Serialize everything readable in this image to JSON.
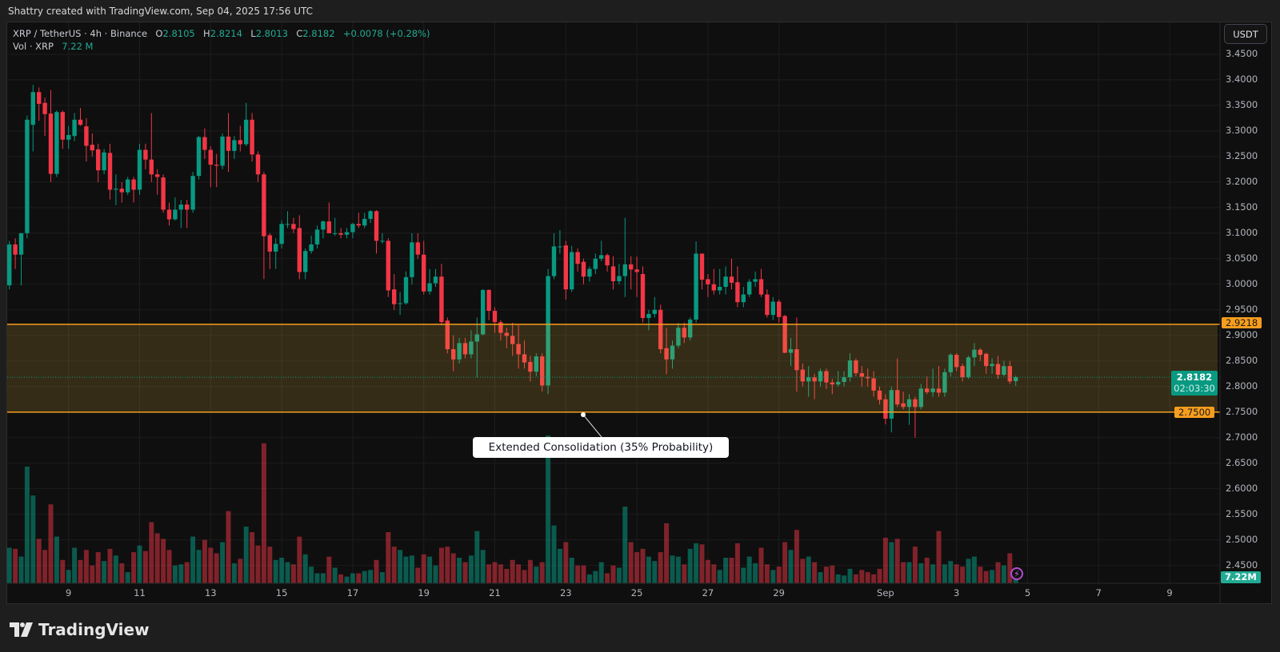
{
  "header": {
    "attribution": "Shattry created with TradingView.com, Sep 04, 2025 17:56 UTC"
  },
  "legend": {
    "symbol": "XRP / TetherUS · 4h · Binance",
    "o_label": "O",
    "o": "2.8105",
    "h_label": "H",
    "h": "2.8214",
    "l_label": "L",
    "l": "2.8013",
    "c_label": "C",
    "c": "2.8182",
    "change": "+0.0078 (+0.28%)",
    "vol_label": "Vol · XRP",
    "vol": "7.22 M"
  },
  "price_axis": {
    "currency": "USDT"
  },
  "branding": {
    "logo": "TradingView"
  },
  "chart_data": {
    "type": "bar",
    "style": "candlestick",
    "title": "XRP / TetherUS · 4h · Binance",
    "ylim": [
      2.415,
      3.514
    ],
    "y_ticks": [
      "3.4500",
      "3.4000",
      "3.3500",
      "3.3000",
      "3.2500",
      "3.2000",
      "3.1500",
      "3.1000",
      "3.0500",
      "3.0000",
      "2.9500",
      "2.9000",
      "2.8500",
      "2.8000",
      "2.7500",
      "2.7000",
      "2.6500",
      "2.6000",
      "2.5500",
      "2.5000",
      "2.4500"
    ],
    "x_ticks": [
      "9",
      "11",
      "13",
      "15",
      "17",
      "19",
      "21",
      "23",
      "25",
      "27",
      "29",
      "Sep",
      "3",
      "5",
      "7",
      "9"
    ],
    "grid": true,
    "colors": {
      "up": "#089981",
      "down": "#f23645",
      "zone_line": "#f79d1e",
      "last_price": "#089981",
      "alert": "#b04fd0"
    },
    "zone": {
      "top": 2.9218,
      "bottom": 2.75,
      "top_label": "2.9218",
      "bottom_label": "2.7500"
    },
    "annotation": "Extended Consolidation (35% Probability)",
    "last_price": {
      "value": 2.8182,
      "label": "2.8182",
      "countdown": "02:03:30"
    },
    "volume_label": "7.22M",
    "ohlc": [
      [
        2.998,
        3.085,
        2.99,
        3.078
      ],
      [
        3.078,
        3.09,
        3.03,
        3.058
      ],
      [
        3.058,
        3.1,
        2.998,
        3.1
      ],
      [
        3.1,
        3.33,
        3.09,
        3.322
      ],
      [
        3.312,
        3.39,
        3.26,
        3.376
      ],
      [
        3.376,
        3.385,
        3.32,
        3.353
      ],
      [
        3.355,
        3.365,
        3.29,
        3.333
      ],
      [
        3.334,
        3.38,
        3.2,
        3.216
      ],
      [
        3.216,
        3.34,
        3.21,
        3.337
      ],
      [
        3.337,
        3.34,
        3.265,
        3.283
      ],
      [
        3.283,
        3.31,
        3.265,
        3.292
      ],
      [
        3.29,
        3.335,
        3.28,
        3.322
      ],
      [
        3.322,
        3.345,
        3.31,
        3.312
      ],
      [
        3.309,
        3.325,
        3.24,
        3.271
      ],
      [
        3.273,
        3.295,
        3.25,
        3.262
      ],
      [
        3.264,
        3.275,
        3.2,
        3.223
      ],
      [
        3.223,
        3.265,
        3.215,
        3.258
      ],
      [
        3.257,
        3.275,
        3.166,
        3.185
      ],
      [
        3.185,
        3.215,
        3.155,
        3.187
      ],
      [
        3.187,
        3.2,
        3.16,
        3.18
      ],
      [
        3.18,
        3.21,
        3.175,
        3.205
      ],
      [
        3.205,
        3.21,
        3.16,
        3.185
      ],
      [
        3.185,
        3.275,
        3.175,
        3.263
      ],
      [
        3.263,
        3.275,
        3.225,
        3.244
      ],
      [
        3.244,
        3.335,
        3.2,
        3.215
      ],
      [
        3.215,
        3.225,
        3.175,
        3.21
      ],
      [
        3.209,
        3.215,
        3.14,
        3.146
      ],
      [
        3.146,
        3.16,
        3.115,
        3.127
      ],
      [
        3.127,
        3.17,
        3.125,
        3.146
      ],
      [
        3.146,
        3.165,
        3.11,
        3.156
      ],
      [
        3.156,
        3.165,
        3.11,
        3.146
      ],
      [
        3.146,
        3.22,
        3.14,
        3.212
      ],
      [
        3.212,
        3.29,
        3.205,
        3.288
      ],
      [
        3.288,
        3.305,
        3.245,
        3.263
      ],
      [
        3.263,
        3.27,
        3.19,
        3.234
      ],
      [
        3.234,
        3.255,
        3.19,
        3.232
      ],
      [
        3.232,
        3.295,
        3.225,
        3.289
      ],
      [
        3.289,
        3.335,
        3.22,
        3.261
      ],
      [
        3.261,
        3.29,
        3.245,
        3.282
      ],
      [
        3.282,
        3.31,
        3.26,
        3.274
      ],
      [
        3.274,
        3.355,
        3.27,
        3.322
      ],
      [
        3.322,
        3.335,
        3.24,
        3.254
      ],
      [
        3.254,
        3.26,
        3.2,
        3.215
      ],
      [
        3.215,
        3.22,
        3.01,
        3.094
      ],
      [
        3.096,
        3.1,
        3.03,
        3.064
      ],
      [
        3.064,
        3.09,
        3.03,
        3.079
      ],
      [
        3.079,
        3.125,
        3.07,
        3.118
      ],
      [
        3.118,
        3.143,
        3.11,
        3.118
      ],
      [
        3.118,
        3.13,
        3.1,
        3.108
      ],
      [
        3.11,
        3.135,
        3.01,
        3.024
      ],
      [
        3.024,
        3.07,
        3.01,
        3.065
      ],
      [
        3.065,
        3.095,
        3.06,
        3.078
      ],
      [
        3.078,
        3.115,
        3.07,
        3.107
      ],
      [
        3.107,
        3.125,
        3.09,
        3.123
      ],
      [
        3.123,
        3.16,
        3.1,
        3.1
      ],
      [
        3.1,
        3.13,
        3.095,
        3.1
      ],
      [
        3.1,
        3.11,
        3.09,
        3.097
      ],
      [
        3.097,
        3.11,
        3.09,
        3.102
      ],
      [
        3.102,
        3.12,
        3.09,
        3.118
      ],
      [
        3.118,
        3.14,
        3.11,
        3.115
      ],
      [
        3.115,
        3.14,
        3.11,
        3.128
      ],
      [
        3.128,
        3.145,
        3.12,
        3.143
      ],
      [
        3.143,
        3.145,
        3.06,
        3.085
      ],
      [
        3.085,
        3.1,
        3.08,
        3.085
      ],
      [
        3.085,
        3.09,
        2.975,
        2.988
      ],
      [
        2.99,
        3.02,
        2.95,
        2.961
      ],
      [
        2.962,
        2.985,
        2.94,
        2.963
      ],
      [
        2.963,
        3.025,
        2.96,
        3.014
      ],
      [
        3.014,
        3.1,
        3.0,
        3.082
      ],
      [
        3.082,
        3.1,
        3.05,
        3.058
      ],
      [
        3.058,
        3.085,
        2.98,
        2.986
      ],
      [
        2.986,
        3.03,
        2.98,
        3.002
      ],
      [
        3.002,
        3.03,
        2.995,
        3.015
      ],
      [
        3.015,
        3.04,
        2.92,
        2.926
      ],
      [
        2.929,
        2.935,
        2.865,
        2.873
      ],
      [
        2.873,
        2.9,
        2.83,
        2.853
      ],
      [
        2.853,
        2.895,
        2.845,
        2.885
      ],
      [
        2.885,
        2.895,
        2.855,
        2.863
      ],
      [
        2.863,
        2.91,
        2.855,
        2.888
      ],
      [
        2.888,
        2.935,
        2.818,
        2.902
      ],
      [
        2.902,
        2.99,
        2.9,
        2.989
      ],
      [
        2.989,
        2.99,
        2.93,
        2.948
      ],
      [
        2.948,
        2.955,
        2.905,
        2.926
      ],
      [
        2.926,
        2.93,
        2.89,
        2.905
      ],
      [
        2.905,
        2.915,
        2.875,
        2.899
      ],
      [
        2.899,
        2.925,
        2.86,
        2.883
      ],
      [
        2.883,
        2.92,
        2.835,
        2.863
      ],
      [
        2.863,
        2.89,
        2.835,
        2.847
      ],
      [
        2.848,
        2.86,
        2.81,
        2.829
      ],
      [
        2.829,
        2.865,
        2.82,
        2.859
      ],
      [
        2.859,
        2.865,
        2.79,
        2.802
      ],
      [
        2.802,
        3.03,
        2.785,
        3.016
      ],
      [
        3.016,
        3.1,
        3.01,
        3.074
      ],
      [
        3.074,
        3.106,
        3.06,
        3.074
      ],
      [
        3.076,
        3.085,
        2.97,
        2.99
      ],
      [
        2.99,
        3.075,
        2.985,
        3.063
      ],
      [
        3.063,
        3.07,
        3.025,
        3.04
      ],
      [
        3.044,
        3.05,
        3.0,
        3.015
      ],
      [
        3.015,
        3.035,
        3.005,
        3.03
      ],
      [
        3.03,
        3.06,
        3.02,
        3.05
      ],
      [
        3.05,
        3.085,
        3.045,
        3.057
      ],
      [
        3.057,
        3.06,
        3.025,
        3.037
      ],
      [
        3.035,
        3.055,
        2.99,
        3.006
      ],
      [
        3.006,
        3.04,
        3.0,
        3.016
      ],
      [
        3.016,
        3.13,
        2.975,
        3.039
      ],
      [
        3.039,
        3.055,
        2.99,
        3.029
      ],
      [
        3.029,
        3.054,
        2.975,
        3.024
      ],
      [
        3.02,
        3.035,
        2.925,
        2.934
      ],
      [
        2.934,
        2.95,
        2.91,
        2.942
      ],
      [
        2.942,
        2.975,
        2.935,
        2.95
      ],
      [
        2.95,
        2.96,
        2.865,
        2.873
      ],
      [
        2.875,
        2.915,
        2.824,
        2.853
      ],
      [
        2.853,
        2.89,
        2.835,
        2.88
      ],
      [
        2.88,
        2.925,
        2.875,
        2.915
      ],
      [
        2.915,
        2.925,
        2.885,
        2.896
      ],
      [
        2.896,
        2.935,
        2.89,
        2.931
      ],
      [
        2.931,
        3.084,
        2.925,
        3.06
      ],
      [
        3.06,
        3.06,
        2.99,
        3.009
      ],
      [
        3.01,
        3.02,
        2.975,
        3.0
      ],
      [
        3.0,
        3.03,
        2.98,
        2.988
      ],
      [
        2.988,
        3.03,
        2.98,
        2.995
      ],
      [
        2.995,
        3.035,
        2.98,
        3.015
      ],
      [
        3.015,
        3.05,
        2.99,
        3.003
      ],
      [
        3.004,
        3.035,
        2.955,
        2.965
      ],
      [
        2.965,
        2.995,
        2.955,
        2.98
      ],
      [
        2.98,
        3.01,
        2.975,
        3.005
      ],
      [
        3.005,
        3.025,
        2.995,
        3.01
      ],
      [
        3.01,
        3.03,
        2.975,
        2.98
      ],
      [
        2.98,
        2.99,
        2.935,
        2.94
      ],
      [
        2.94,
        2.975,
        2.93,
        2.966
      ],
      [
        2.966,
        2.97,
        2.925,
        2.936
      ],
      [
        2.938,
        2.94,
        2.865,
        2.866
      ],
      [
        2.866,
        2.895,
        2.84,
        2.873
      ],
      [
        2.873,
        2.935,
        2.79,
        2.832
      ],
      [
        2.833,
        2.845,
        2.8,
        2.81
      ],
      [
        2.81,
        2.84,
        2.78,
        2.818
      ],
      [
        2.818,
        2.825,
        2.775,
        2.81
      ],
      [
        2.81,
        2.835,
        2.8,
        2.83
      ],
      [
        2.83,
        2.835,
        2.795,
        2.808
      ],
      [
        2.808,
        2.815,
        2.785,
        2.804
      ],
      [
        2.804,
        2.83,
        2.8,
        2.809
      ],
      [
        2.809,
        2.83,
        2.8,
        2.818
      ],
      [
        2.818,
        2.865,
        2.81,
        2.851
      ],
      [
        2.851,
        2.855,
        2.82,
        2.826
      ],
      [
        2.826,
        2.84,
        2.8,
        2.819
      ],
      [
        2.819,
        2.835,
        2.8,
        2.816
      ],
      [
        2.816,
        2.83,
        2.78,
        2.792
      ],
      [
        2.792,
        2.8,
        2.765,
        2.774
      ],
      [
        2.775,
        2.785,
        2.726,
        2.737
      ],
      [
        2.737,
        2.8,
        2.71,
        2.793
      ],
      [
        2.793,
        2.855,
        2.76,
        2.765
      ],
      [
        2.767,
        2.79,
        2.755,
        2.76
      ],
      [
        2.76,
        2.785,
        2.725,
        2.775
      ],
      [
        2.775,
        2.78,
        2.7,
        2.76
      ],
      [
        2.76,
        2.805,
        2.755,
        2.796
      ],
      [
        2.796,
        2.82,
        2.785,
        2.789
      ],
      [
        2.789,
        2.835,
        2.78,
        2.796
      ],
      [
        2.796,
        2.84,
        2.78,
        2.788
      ],
      [
        2.788,
        2.835,
        2.78,
        2.828
      ],
      [
        2.828,
        2.865,
        2.82,
        2.862
      ],
      [
        2.862,
        2.865,
        2.83,
        2.838
      ],
      [
        2.84,
        2.845,
        2.81,
        2.818
      ],
      [
        2.818,
        2.86,
        2.815,
        2.857
      ],
      [
        2.857,
        2.885,
        2.84,
        2.872
      ],
      [
        2.872,
        2.875,
        2.85,
        2.862
      ],
      [
        2.864,
        2.866,
        2.825,
        2.84
      ],
      [
        2.84,
        2.855,
        2.825,
        2.844
      ],
      [
        2.844,
        2.86,
        2.815,
        2.823
      ],
      [
        2.823,
        2.85,
        2.82,
        2.84
      ],
      [
        2.84,
        2.85,
        2.805,
        2.81
      ],
      [
        2.8105,
        2.8214,
        2.8013,
        2.8182
      ]
    ],
    "volume_m": [
      32,
      31,
      24,
      105,
      79,
      40,
      30,
      71,
      42,
      21,
      12,
      32,
      21,
      30,
      16,
      28,
      20,
      31,
      25,
      18,
      10,
      28,
      34,
      29,
      55,
      45,
      40,
      30,
      16,
      17,
      19,
      42,
      30,
      39,
      32,
      27,
      37,
      65,
      18,
      22,
      51,
      46,
      34,
      126,
      33,
      21,
      23,
      19,
      17,
      42,
      26,
      15,
      9,
      9,
      24,
      14,
      8,
      6,
      9,
      9,
      11,
      12,
      21,
      10,
      46,
      33,
      30,
      24,
      25,
      14,
      26,
      24,
      16,
      32,
      33,
      27,
      23,
      19,
      25,
      47,
      30,
      17,
      19,
      17,
      13,
      21,
      17,
      12,
      21,
      15,
      19,
      133,
      52,
      31,
      37,
      23,
      16,
      16,
      8,
      11,
      19,
      9,
      16,
      14,
      69,
      37,
      28,
      31,
      24,
      20,
      28,
      54,
      25,
      24,
      17,
      31,
      36,
      35,
      21,
      17,
      12,
      23,
      23,
      36,
      14,
      24,
      18,
      32,
      17,
      12,
      15,
      37,
      30,
      48,
      22,
      24,
      19,
      10,
      15,
      16,
      8,
      7,
      13,
      8,
      12,
      10,
      8,
      13,
      41,
      37,
      40,
      19,
      19,
      33,
      18,
      23,
      17,
      47,
      17,
      20,
      17,
      15,
      22,
      24,
      15,
      11,
      12,
      19,
      16,
      27,
      7.22
    ]
  }
}
